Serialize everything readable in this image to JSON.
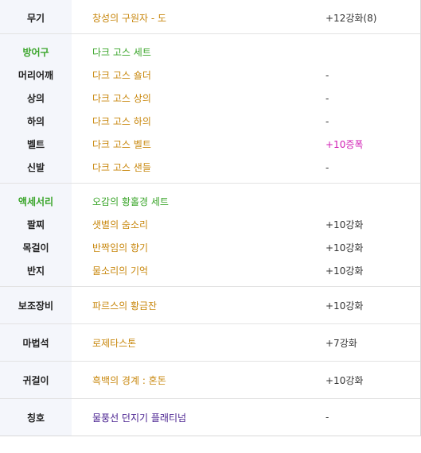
{
  "groups": [
    {
      "rows": [
        {
          "category": "무기",
          "name": "창성의 구원자 - 도",
          "value": "+12강화(8)"
        }
      ]
    },
    {
      "rows": [
        {
          "category": "방어구",
          "name": "다크 고스 세트",
          "value": "",
          "header": true
        },
        {
          "category": "머리어깨",
          "name": "다크 고스 숄더",
          "value": "-"
        },
        {
          "category": "상의",
          "name": "다크 고스 상의",
          "value": "-"
        },
        {
          "category": "하의",
          "name": "다크 고스 하의",
          "value": "-"
        },
        {
          "category": "벨트",
          "name": "다크 고스 벨트",
          "value": "+10증폭",
          "value_color": "pink"
        },
        {
          "category": "신발",
          "name": "다크 고스 샌들",
          "value": "-"
        }
      ]
    },
    {
      "rows": [
        {
          "category": "액세서리",
          "name": "오감의 황홀경 세트",
          "value": "",
          "header": true
        },
        {
          "category": "팔찌",
          "name": "샛별의 숨소리",
          "value": "+10강화"
        },
        {
          "category": "목걸이",
          "name": "반짝임의 향기",
          "value": "+10강화"
        },
        {
          "category": "반지",
          "name": "물소리의 기억",
          "value": "+10강화"
        }
      ]
    },
    {
      "single": true,
      "rows": [
        {
          "category": "보조장비",
          "name": "파르스의 황금잔",
          "value": "+10강화"
        }
      ]
    },
    {
      "single": true,
      "rows": [
        {
          "category": "마법석",
          "name": "로제타스톤",
          "value": "+7강화"
        }
      ]
    },
    {
      "single": true,
      "rows": [
        {
          "category": "귀걸이",
          "name": "흑백의 경계 : 혼돈",
          "value": "+10강화"
        }
      ]
    },
    {
      "single": true,
      "rows": [
        {
          "category": "칭호",
          "name": "물풍선 던지기 플래티넘",
          "value": "-",
          "name_color": "purple"
        }
      ]
    }
  ],
  "colors": {
    "category_bg": "#f4f6fb",
    "item_name": "#c8870d",
    "set_header": "#3aa52a",
    "amplify": "#d11fb4",
    "title_item": "#4a2290"
  }
}
